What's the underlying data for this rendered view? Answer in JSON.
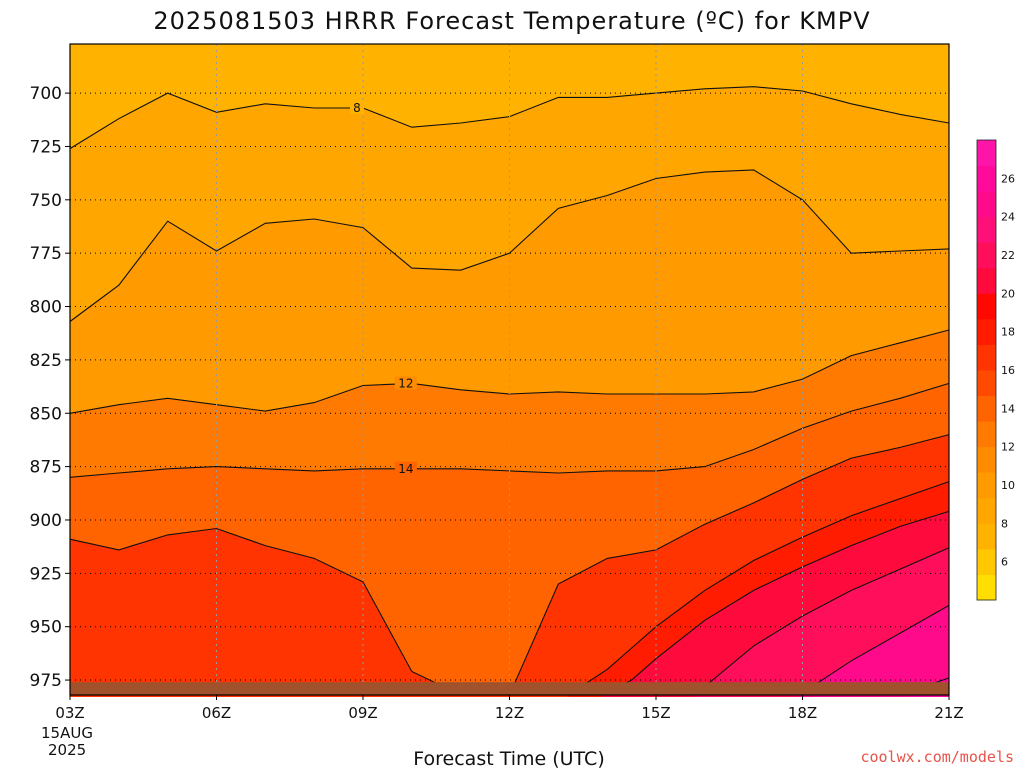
{
  "title": "2025081503 HRRR Forecast Temperature (ºC) for KMPV",
  "credit": "coolwx.com/models",
  "chart_data": {
    "type": "heatmap",
    "title": "2025081503 HRRR Forecast Temperature (ºC) for KMPV",
    "xlabel": "Forecast Time (UTC)",
    "ylabel": "",
    "x_ticks": [
      "03Z",
      "06Z",
      "09Z",
      "12Z",
      "15Z",
      "18Z",
      "21Z"
    ],
    "x_date_lines": [
      "15AUG",
      "2025"
    ],
    "x_range_hours": [
      3,
      21
    ],
    "y_ticks": [
      700,
      725,
      750,
      775,
      800,
      825,
      850,
      875,
      900,
      925,
      950,
      975
    ],
    "y_range_hPa": [
      677,
      982
    ],
    "y_inverted": true,
    "grid": true,
    "colorbar": {
      "ticks": [
        6,
        8,
        10,
        12,
        14,
        16,
        18,
        20,
        22,
        24,
        26
      ],
      "range": [
        4,
        28
      ],
      "colors": [
        "#ffde00",
        "#ffc800",
        "#ffb200",
        "#ffa600",
        "#ff9a00",
        "#ff8c00",
        "#ff7a00",
        "#ff6400",
        "#ff4a00",
        "#ff3400",
        "#ff1c00",
        "#ff0800",
        "#ff0a3c",
        "#ff0e5c",
        "#ff0f78",
        "#ff0a8a",
        "#ff0a9a",
        "#ff14aa"
      ]
    },
    "contour_labels": [
      "8",
      "12",
      "14"
    ],
    "bands": [
      {
        "level": 8,
        "times": [
          3,
          4,
          5,
          6,
          7,
          8,
          9,
          10,
          11,
          12,
          13,
          14,
          15,
          16,
          17,
          18,
          19,
          20,
          21
        ],
        "pressures": [
          726,
          712,
          700,
          709,
          705,
          707,
          707,
          716,
          714,
          711,
          702,
          702,
          700,
          698,
          697,
          699,
          705,
          710,
          714
        ]
      },
      {
        "level": 10,
        "times": [
          3,
          4,
          5,
          6,
          7,
          8,
          9,
          10,
          11,
          12,
          13,
          14,
          15,
          16,
          17,
          18,
          19,
          20,
          21
        ],
        "pressures": [
          807,
          790,
          760,
          774,
          761,
          759,
          763,
          782,
          783,
          775,
          754,
          748,
          740,
          737,
          736,
          750,
          775,
          774,
          773
        ]
      },
      {
        "level": 12,
        "times": [
          3,
          4,
          5,
          6,
          7,
          8,
          9,
          10,
          11,
          12,
          13,
          14,
          15,
          16,
          17,
          18,
          19,
          20,
          21
        ],
        "pressures": [
          850,
          846,
          843,
          846,
          849,
          845,
          837,
          836,
          839,
          841,
          840,
          841,
          841,
          841,
          840,
          834,
          823,
          817,
          811
        ]
      },
      {
        "level": 14,
        "times": [
          3,
          4,
          5,
          6,
          7,
          8,
          9,
          10,
          11,
          12,
          13,
          14,
          15,
          16,
          17,
          18,
          19,
          20,
          21
        ],
        "pressures": [
          880,
          878,
          876,
          875,
          876,
          877,
          876,
          876,
          876,
          877,
          878,
          877,
          877,
          875,
          867,
          857,
          849,
          843,
          836
        ]
      },
      {
        "level": 16,
        "times": [
          3,
          4,
          5,
          6,
          7,
          8,
          9,
          10,
          11,
          12,
          13,
          14,
          15,
          16,
          17,
          18,
          19,
          20,
          21
        ],
        "pressures": [
          909,
          914,
          907,
          904,
          912,
          918,
          929,
          971,
          982,
          982,
          930,
          918,
          914,
          902,
          892,
          881,
          871,
          866,
          860
        ]
      },
      {
        "level": 18,
        "times": [
          13.2,
          14,
          15,
          16,
          17,
          18,
          19,
          20,
          21
        ],
        "pressures": [
          982,
          970,
          950,
          933,
          919,
          908,
          898,
          890,
          882
        ]
      },
      {
        "level": 20,
        "times": [
          13.9,
          14.5,
          15,
          16,
          17,
          18,
          19,
          20,
          21
        ],
        "pressures": [
          982,
          975,
          965,
          947,
          933,
          922,
          912,
          903,
          896
        ]
      },
      {
        "level": 22,
        "times": [
          15.8,
          16,
          17,
          18,
          19,
          20,
          21
        ],
        "pressures": [
          982,
          978,
          959,
          945,
          933,
          923,
          913
        ]
      },
      {
        "level": 24,
        "times": [
          17.9,
          18,
          19,
          20,
          21
        ],
        "pressures": [
          982,
          981,
          966,
          953,
          940
        ]
      },
      {
        "level": 26,
        "times": [
          20.1,
          20.5,
          21
        ],
        "pressures": [
          982,
          978,
          974
        ]
      }
    ],
    "ground": {
      "color": "#a0522d",
      "top_hPa": 976
    }
  }
}
